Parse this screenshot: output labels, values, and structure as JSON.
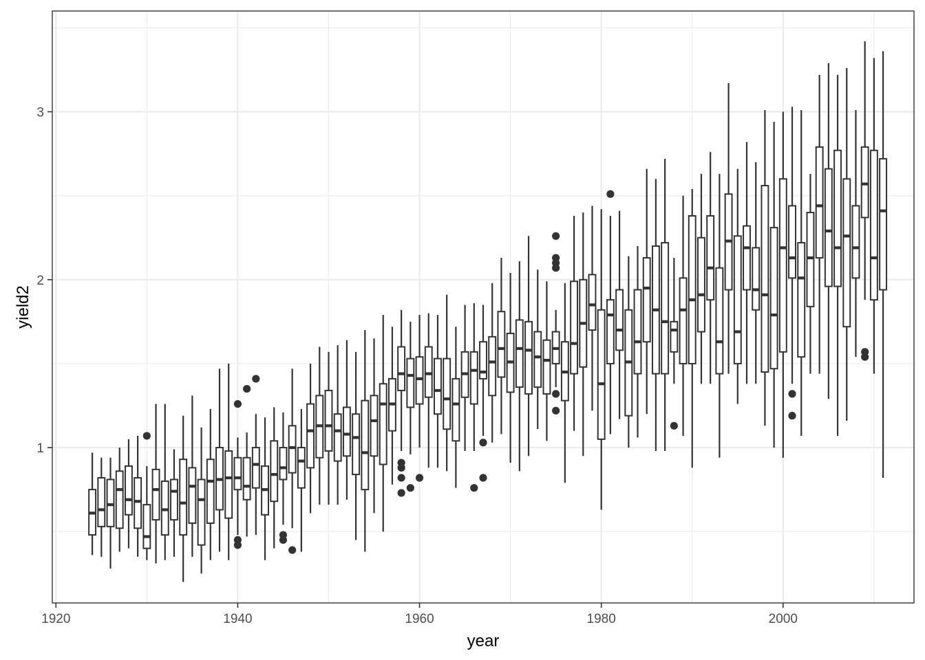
{
  "chart_data": {
    "type": "box",
    "title": "",
    "xlabel": "year",
    "ylabel": "yield2",
    "xlim": [
      1919.6,
      2014.4
    ],
    "ylim": [
      0.075,
      3.6
    ],
    "x_ticks": [
      1920,
      1940,
      1960,
      1980,
      2000
    ],
    "x_tick_labels": [
      "1920",
      "1940",
      "1960",
      "1980",
      "2000"
    ],
    "y_ticks": [
      1,
      2,
      3
    ],
    "y_tick_labels": [
      "1",
      "2",
      "3"
    ],
    "grid": true,
    "legend": "none",
    "colors": {
      "box_stroke": "#333333",
      "grid_major": "#ebebeb",
      "panel_border": "#333333",
      "background": "#ffffff"
    },
    "boxes": [
      {
        "year": 1924,
        "low": 0.36,
        "q1": 0.48,
        "median": 0.61,
        "q3": 0.75,
        "high": 0.97,
        "outliers": []
      },
      {
        "year": 1925,
        "low": 0.35,
        "q1": 0.53,
        "median": 0.63,
        "q3": 0.82,
        "high": 0.94,
        "outliers": []
      },
      {
        "year": 1926,
        "low": 0.28,
        "q1": 0.53,
        "median": 0.66,
        "q3": 0.81,
        "high": 0.94,
        "outliers": []
      },
      {
        "year": 1927,
        "low": 0.38,
        "q1": 0.52,
        "median": 0.75,
        "q3": 0.86,
        "high": 1.0,
        "outliers": []
      },
      {
        "year": 1928,
        "low": 0.4,
        "q1": 0.6,
        "median": 0.69,
        "q3": 0.89,
        "high": 1.05,
        "outliers": []
      },
      {
        "year": 1929,
        "low": 0.35,
        "q1": 0.52,
        "median": 0.68,
        "q3": 0.82,
        "high": 1.07,
        "outliers": []
      },
      {
        "year": 1930,
        "low": 0.33,
        "q1": 0.4,
        "median": 0.47,
        "q3": 0.66,
        "high": 0.89,
        "outliers": [
          1.07
        ]
      },
      {
        "year": 1931,
        "low": 0.31,
        "q1": 0.57,
        "median": 0.75,
        "q3": 0.87,
        "high": 1.26,
        "outliers": []
      },
      {
        "year": 1932,
        "low": 0.33,
        "q1": 0.48,
        "median": 0.63,
        "q3": 0.8,
        "high": 1.26,
        "outliers": []
      },
      {
        "year": 1933,
        "low": 0.35,
        "q1": 0.57,
        "median": 0.74,
        "q3": 0.81,
        "high": 0.99,
        "outliers": []
      },
      {
        "year": 1934,
        "low": 0.2,
        "q1": 0.48,
        "median": 0.67,
        "q3": 0.93,
        "high": 1.19,
        "outliers": []
      },
      {
        "year": 1935,
        "low": 0.35,
        "q1": 0.55,
        "median": 0.77,
        "q3": 0.88,
        "high": 1.31,
        "outliers": []
      },
      {
        "year": 1936,
        "low": 0.25,
        "q1": 0.42,
        "median": 0.69,
        "q3": 0.81,
        "high": 1.12,
        "outliers": []
      },
      {
        "year": 1937,
        "low": 0.33,
        "q1": 0.55,
        "median": 0.8,
        "q3": 0.93,
        "high": 1.23,
        "outliers": []
      },
      {
        "year": 1938,
        "low": 0.38,
        "q1": 0.63,
        "median": 0.81,
        "q3": 1.0,
        "high": 1.47,
        "outliers": []
      },
      {
        "year": 1939,
        "low": 0.33,
        "q1": 0.58,
        "median": 0.82,
        "q3": 0.98,
        "high": 1.5,
        "outliers": []
      },
      {
        "year": 1940,
        "low": 0.48,
        "q1": 0.75,
        "median": 0.82,
        "q3": 0.94,
        "high": 1.06,
        "outliers": [
          1.26,
          0.45,
          0.42
        ]
      },
      {
        "year": 1941,
        "low": 0.47,
        "q1": 0.69,
        "median": 0.77,
        "q3": 0.94,
        "high": 1.09,
        "outliers": [
          1.35
        ]
      },
      {
        "year": 1942,
        "low": 0.48,
        "q1": 0.76,
        "median": 0.9,
        "q3": 1.0,
        "high": 1.2,
        "outliers": [
          1.41
        ]
      },
      {
        "year": 1943,
        "low": 0.33,
        "q1": 0.6,
        "median": 0.75,
        "q3": 0.89,
        "high": 1.18,
        "outliers": []
      },
      {
        "year": 1944,
        "low": 0.4,
        "q1": 0.68,
        "median": 0.84,
        "q3": 1.04,
        "high": 1.24,
        "outliers": []
      },
      {
        "year": 1945,
        "low": 0.54,
        "q1": 0.81,
        "median": 0.88,
        "q3": 1.0,
        "high": 1.21,
        "outliers": [
          0.48,
          0.45
        ]
      },
      {
        "year": 1946,
        "low": 0.52,
        "q1": 0.85,
        "median": 1.0,
        "q3": 1.13,
        "high": 1.47,
        "outliers": [
          0.39
        ]
      },
      {
        "year": 1947,
        "low": 0.38,
        "q1": 0.76,
        "median": 0.92,
        "q3": 1.0,
        "high": 1.23,
        "outliers": []
      },
      {
        "year": 1948,
        "low": 0.61,
        "q1": 0.88,
        "median": 1.1,
        "q3": 1.26,
        "high": 1.5,
        "outliers": []
      },
      {
        "year": 1949,
        "low": 0.66,
        "q1": 0.94,
        "median": 1.13,
        "q3": 1.31,
        "high": 1.6,
        "outliers": []
      },
      {
        "year": 1950,
        "low": 0.66,
        "q1": 0.98,
        "median": 1.13,
        "q3": 1.34,
        "high": 1.57,
        "outliers": []
      },
      {
        "year": 1951,
        "low": 0.66,
        "q1": 0.92,
        "median": 1.1,
        "q3": 1.2,
        "high": 1.61,
        "outliers": []
      },
      {
        "year": 1952,
        "low": 0.69,
        "q1": 0.95,
        "median": 1.08,
        "q3": 1.24,
        "high": 1.64,
        "outliers": []
      },
      {
        "year": 1953,
        "low": 0.45,
        "q1": 0.84,
        "median": 1.06,
        "q3": 1.2,
        "high": 1.57,
        "outliers": []
      },
      {
        "year": 1954,
        "low": 0.38,
        "q1": 0.75,
        "median": 0.97,
        "q3": 1.28,
        "high": 1.7,
        "outliers": []
      },
      {
        "year": 1955,
        "low": 0.61,
        "q1": 0.95,
        "median": 1.16,
        "q3": 1.31,
        "high": 1.65,
        "outliers": []
      },
      {
        "year": 1956,
        "low": 0.5,
        "q1": 0.9,
        "median": 1.26,
        "q3": 1.38,
        "high": 1.79,
        "outliers": []
      },
      {
        "year": 1957,
        "low": 0.78,
        "q1": 1.1,
        "median": 1.26,
        "q3": 1.41,
        "high": 1.72,
        "outliers": []
      },
      {
        "year": 1958,
        "low": 0.98,
        "q1": 1.34,
        "median": 1.44,
        "q3": 1.6,
        "high": 1.82,
        "outliers": [
          0.91,
          0.88,
          0.82,
          0.73
        ]
      },
      {
        "year": 1959,
        "low": 0.96,
        "q1": 1.24,
        "median": 1.43,
        "q3": 1.53,
        "high": 1.75,
        "outliers": [
          0.76
        ]
      },
      {
        "year": 1960,
        "low": 1.0,
        "q1": 1.26,
        "median": 1.41,
        "q3": 1.54,
        "high": 1.79,
        "outliers": [
          0.82
        ]
      },
      {
        "year": 1961,
        "low": 0.88,
        "q1": 1.3,
        "median": 1.44,
        "q3": 1.6,
        "high": 1.8,
        "outliers": []
      },
      {
        "year": 1962,
        "low": 0.88,
        "q1": 1.2,
        "median": 1.34,
        "q3": 1.53,
        "high": 1.79,
        "outliers": []
      },
      {
        "year": 1963,
        "low": 0.86,
        "q1": 1.11,
        "median": 1.29,
        "q3": 1.53,
        "high": 1.91,
        "outliers": []
      },
      {
        "year": 1964,
        "low": 0.76,
        "q1": 1.04,
        "median": 1.26,
        "q3": 1.41,
        "high": 1.72,
        "outliers": []
      },
      {
        "year": 1965,
        "low": 0.98,
        "q1": 1.3,
        "median": 1.44,
        "q3": 1.57,
        "high": 1.85,
        "outliers": []
      },
      {
        "year": 1966,
        "low": 0.98,
        "q1": 1.26,
        "median": 1.46,
        "q3": 1.57,
        "high": 1.86,
        "outliers": [
          0.76
        ]
      },
      {
        "year": 1967,
        "low": 1.07,
        "q1": 1.41,
        "median": 1.45,
        "q3": 1.63,
        "high": 1.85,
        "outliers": [
          1.03,
          0.82
        ]
      },
      {
        "year": 1968,
        "low": 1.03,
        "q1": 1.31,
        "median": 1.51,
        "q3": 1.66,
        "high": 1.98,
        "outliers": []
      },
      {
        "year": 1969,
        "low": 1.08,
        "q1": 1.42,
        "median": 1.59,
        "q3": 1.81,
        "high": 2.13,
        "outliers": []
      },
      {
        "year": 1970,
        "low": 0.91,
        "q1": 1.33,
        "median": 1.51,
        "q3": 1.68,
        "high": 2.04,
        "outliers": []
      },
      {
        "year": 1971,
        "low": 0.86,
        "q1": 1.36,
        "median": 1.59,
        "q3": 1.76,
        "high": 2.11,
        "outliers": []
      },
      {
        "year": 1972,
        "low": 0.95,
        "q1": 1.32,
        "median": 1.58,
        "q3": 1.75,
        "high": 2.26,
        "outliers": []
      },
      {
        "year": 1973,
        "low": 1.11,
        "q1": 1.36,
        "median": 1.54,
        "q3": 1.69,
        "high": 2.06,
        "outliers": []
      },
      {
        "year": 1974,
        "low": 1.04,
        "q1": 1.32,
        "median": 1.52,
        "q3": 1.64,
        "high": 1.99,
        "outliers": []
      },
      {
        "year": 1975,
        "low": 1.36,
        "q1": 1.5,
        "median": 1.59,
        "q3": 1.69,
        "high": 1.82,
        "outliers": [
          2.26,
          2.13,
          2.1,
          2.07,
          1.32,
          1.22
        ]
      },
      {
        "year": 1976,
        "low": 0.79,
        "q1": 1.28,
        "median": 1.45,
        "q3": 1.63,
        "high": 1.98,
        "outliers": []
      },
      {
        "year": 1977,
        "low": 1.1,
        "q1": 1.44,
        "median": 1.62,
        "q3": 1.99,
        "high": 2.38,
        "outliers": []
      },
      {
        "year": 1978,
        "low": 0.95,
        "q1": 1.48,
        "median": 1.74,
        "q3": 2.0,
        "high": 2.4,
        "outliers": []
      },
      {
        "year": 1979,
        "low": 1.22,
        "q1": 1.7,
        "median": 1.85,
        "q3": 2.03,
        "high": 2.44,
        "outliers": []
      },
      {
        "year": 1980,
        "low": 0.63,
        "q1": 1.05,
        "median": 1.38,
        "q3": 1.82,
        "high": 2.42,
        "outliers": []
      },
      {
        "year": 1981,
        "low": 1.08,
        "q1": 1.5,
        "median": 1.79,
        "q3": 1.88,
        "high": 2.38,
        "outliers": [
          2.51
        ]
      },
      {
        "year": 1982,
        "low": 1.17,
        "q1": 1.58,
        "median": 1.7,
        "q3": 1.94,
        "high": 2.41,
        "outliers": []
      },
      {
        "year": 1983,
        "low": 1.0,
        "q1": 1.19,
        "median": 1.51,
        "q3": 1.82,
        "high": 2.14,
        "outliers": []
      },
      {
        "year": 1984,
        "low": 1.06,
        "q1": 1.44,
        "median": 1.63,
        "q3": 1.94,
        "high": 2.2,
        "outliers": []
      },
      {
        "year": 1985,
        "low": 1.2,
        "q1": 1.63,
        "median": 1.95,
        "q3": 2.13,
        "high": 2.66,
        "outliers": []
      },
      {
        "year": 1986,
        "low": 0.98,
        "q1": 1.44,
        "median": 1.82,
        "q3": 2.2,
        "high": 2.6,
        "outliers": []
      },
      {
        "year": 1987,
        "low": 0.98,
        "q1": 1.44,
        "median": 1.75,
        "q3": 2.22,
        "high": 2.72,
        "outliers": []
      },
      {
        "year": 1988,
        "low": 1.38,
        "q1": 1.57,
        "median": 1.7,
        "q3": 1.75,
        "high": 2.13,
        "outliers": [
          1.13
        ]
      },
      {
        "year": 1989,
        "low": 1.07,
        "q1": 1.5,
        "median": 1.82,
        "q3": 2.01,
        "high": 2.5,
        "outliers": []
      },
      {
        "year": 1990,
        "low": 0.88,
        "q1": 1.5,
        "median": 1.88,
        "q3": 2.38,
        "high": 2.54,
        "outliers": []
      },
      {
        "year": 1991,
        "low": 1.38,
        "q1": 1.69,
        "median": 1.91,
        "q3": 2.25,
        "high": 2.63,
        "outliers": []
      },
      {
        "year": 1992,
        "low": 1.38,
        "q1": 1.88,
        "median": 2.07,
        "q3": 2.38,
        "high": 2.76,
        "outliers": []
      },
      {
        "year": 1993,
        "low": 0.94,
        "q1": 1.44,
        "median": 1.63,
        "q3": 2.07,
        "high": 2.63,
        "outliers": []
      },
      {
        "year": 1994,
        "low": 1.44,
        "q1": 1.94,
        "median": 2.23,
        "q3": 2.51,
        "high": 3.17,
        "outliers": []
      },
      {
        "year": 1995,
        "low": 1.26,
        "q1": 1.5,
        "median": 1.69,
        "q3": 2.26,
        "high": 2.66,
        "outliers": []
      },
      {
        "year": 1996,
        "low": 1.38,
        "q1": 1.94,
        "median": 2.19,
        "q3": 2.32,
        "high": 2.82,
        "outliers": []
      },
      {
        "year": 1997,
        "low": 1.38,
        "q1": 1.82,
        "median": 1.94,
        "q3": 2.19,
        "high": 2.7,
        "outliers": []
      },
      {
        "year": 1998,
        "low": 1.13,
        "q1": 1.45,
        "median": 1.91,
        "q3": 2.56,
        "high": 3.01,
        "outliers": []
      },
      {
        "year": 1999,
        "low": 1.0,
        "q1": 1.47,
        "median": 1.79,
        "q3": 2.31,
        "high": 2.94,
        "outliers": []
      },
      {
        "year": 2000,
        "low": 0.94,
        "q1": 1.57,
        "median": 2.19,
        "q3": 2.6,
        "high": 3.0,
        "outliers": []
      },
      {
        "year": 2001,
        "low": 1.38,
        "q1": 2.01,
        "median": 2.13,
        "q3": 2.44,
        "high": 3.03,
        "outliers": [
          1.32,
          1.19
        ]
      },
      {
        "year": 2002,
        "low": 1.07,
        "q1": 1.54,
        "median": 2.01,
        "q3": 2.22,
        "high": 3.01,
        "outliers": []
      },
      {
        "year": 2003,
        "low": 1.44,
        "q1": 1.84,
        "median": 2.13,
        "q3": 2.4,
        "high": 2.63,
        "outliers": []
      },
      {
        "year": 2004,
        "low": 1.44,
        "q1": 2.13,
        "median": 2.44,
        "q3": 2.79,
        "high": 3.22,
        "outliers": []
      },
      {
        "year": 2005,
        "low": 1.29,
        "q1": 1.96,
        "median": 2.29,
        "q3": 2.66,
        "high": 3.29,
        "outliers": []
      },
      {
        "year": 2006,
        "low": 1.07,
        "q1": 1.96,
        "median": 2.19,
        "q3": 2.77,
        "high": 3.22,
        "outliers": []
      },
      {
        "year": 2007,
        "low": 1.16,
        "q1": 1.72,
        "median": 2.26,
        "q3": 2.6,
        "high": 3.26,
        "outliers": []
      },
      {
        "year": 2008,
        "low": 1.54,
        "q1": 2.01,
        "median": 2.19,
        "q3": 2.44,
        "high": 3.01,
        "outliers": []
      },
      {
        "year": 2009,
        "low": 1.88,
        "q1": 2.37,
        "median": 2.57,
        "q3": 2.79,
        "high": 3.42,
        "outliers": [
          1.57,
          1.54
        ]
      },
      {
        "year": 2010,
        "low": 1.44,
        "q1": 1.88,
        "median": 2.13,
        "q3": 2.77,
        "high": 3.32,
        "outliers": []
      },
      {
        "year": 2011,
        "low": 0.82,
        "q1": 1.94,
        "median": 2.41,
        "q3": 2.72,
        "high": 3.36,
        "outliers": []
      }
    ]
  }
}
